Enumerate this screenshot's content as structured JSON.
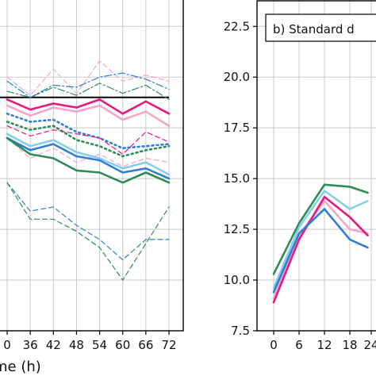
{
  "chart_data": [
    {
      "panel": "left",
      "type": "line",
      "xlabel_visible": "me (h)",
      "x_ticks_visible": [
        "0",
        "36",
        "42",
        "48",
        "54",
        "60",
        "66",
        "72"
      ],
      "x_range_visible": [
        30,
        72
      ],
      "ylim_visible": [
        7.5,
        23.8
      ],
      "grid": true,
      "reference_line": {
        "value": 19.0,
        "color": "#000000"
      },
      "series": [
        {
          "color": "#f6a5c8",
          "style": "dashed",
          "width": 1.2,
          "x": [
            30,
            36,
            42,
            48,
            54,
            60,
            66,
            72
          ],
          "y": [
            20.0,
            19.1,
            20.4,
            19.2,
            20.8,
            19.8,
            20.1,
            19.8
          ]
        },
        {
          "color": "#2f7fd2",
          "style": "dashdot",
          "width": 1.2,
          "x": [
            30,
            36,
            42,
            48,
            54,
            60,
            66,
            72
          ],
          "y": [
            19.8,
            19.0,
            19.6,
            19.5,
            20.0,
            20.2,
            19.9,
            19.4
          ]
        },
        {
          "color": "#2e8b57",
          "style": "dashdot",
          "width": 1.2,
          "x": [
            30,
            36,
            42,
            48,
            54,
            60,
            66,
            72
          ],
          "y": [
            19.3,
            19.0,
            19.5,
            19.1,
            19.7,
            19.2,
            19.6,
            18.9
          ]
        },
        {
          "color": "#e8197d",
          "style": "solid",
          "width": 2.6,
          "x": [
            30,
            36,
            42,
            48,
            54,
            60,
            66,
            72
          ],
          "y": [
            18.9,
            18.4,
            18.7,
            18.5,
            18.9,
            18.2,
            18.8,
            18.2
          ]
        },
        {
          "color": "#f6a5c8",
          "style": "solid",
          "width": 2.6,
          "x": [
            30,
            36,
            42,
            48,
            54,
            60,
            66,
            72
          ],
          "y": [
            18.6,
            18.1,
            18.5,
            18.3,
            18.6,
            17.9,
            18.3,
            17.6
          ]
        },
        {
          "color": "#2f7fd2",
          "style": "dotted",
          "width": 2.6,
          "x": [
            30,
            36,
            42,
            48,
            54,
            60,
            66,
            72
          ],
          "y": [
            18.2,
            17.8,
            17.9,
            17.3,
            17.0,
            16.5,
            16.6,
            16.7
          ]
        },
        {
          "color": "#2e8b57",
          "style": "dotted",
          "width": 2.6,
          "x": [
            30,
            36,
            42,
            48,
            54,
            60,
            66,
            72
          ],
          "y": [
            17.8,
            17.4,
            17.6,
            16.9,
            16.6,
            16.1,
            16.4,
            16.6
          ]
        },
        {
          "color": "#e8197d",
          "style": "dashed",
          "width": 1.2,
          "x": [
            30,
            36,
            42,
            48,
            54,
            60,
            66,
            72
          ],
          "y": [
            17.6,
            17.1,
            17.4,
            17.2,
            17.0,
            16.2,
            17.3,
            16.8
          ]
        },
        {
          "color": "#f6a5c8",
          "style": "dashed",
          "width": 1.2,
          "x": [
            30,
            36,
            42,
            48,
            54,
            60,
            66,
            72
          ],
          "y": [
            17.0,
            16.0,
            16.5,
            15.8,
            16.2,
            15.6,
            16.0,
            15.8
          ]
        },
        {
          "color": "#87ceeb",
          "style": "solid",
          "width": 2.6,
          "x": [
            30,
            36,
            42,
            48,
            54,
            60,
            66,
            72
          ],
          "y": [
            17.2,
            16.6,
            16.9,
            16.3,
            16.0,
            15.5,
            15.8,
            15.2
          ]
        },
        {
          "color": "#2f7fd2",
          "style": "solid",
          "width": 2.6,
          "x": [
            30,
            36,
            42,
            48,
            54,
            60,
            66,
            72
          ],
          "y": [
            17.0,
            16.4,
            16.7,
            16.1,
            15.9,
            15.3,
            15.5,
            15.0
          ]
        },
        {
          "color": "#2e8b57",
          "style": "solid",
          "width": 2.6,
          "x": [
            30,
            36,
            42,
            48,
            54,
            60,
            66,
            72
          ],
          "y": [
            17.0,
            16.2,
            16.0,
            15.4,
            15.3,
            14.8,
            15.3,
            14.8
          ]
        },
        {
          "color": "#2f7fd2",
          "style": "dashed",
          "width": 1.2,
          "x": [
            30,
            36,
            42,
            48,
            54,
            60,
            66,
            72
          ],
          "y": [
            14.8,
            13.4,
            13.6,
            12.7,
            12.0,
            11.0,
            12.0,
            12.0
          ]
        },
        {
          "color": "#2e8b57",
          "style": "dashed",
          "width": 1.2,
          "x": [
            30,
            36,
            42,
            48,
            54,
            60,
            66,
            72
          ],
          "y": [
            14.8,
            13.0,
            13.0,
            12.4,
            11.6,
            10.0,
            11.8,
            13.6
          ]
        }
      ]
    },
    {
      "panel": "right",
      "type": "line",
      "box_label": "b) Standard d",
      "x_ticks_visible": [
        "0",
        "6",
        "12",
        "18",
        "24"
      ],
      "y_ticks": [
        "7.5",
        "10.0",
        "12.5",
        "15.0",
        "17.5",
        "20.0",
        "22.5"
      ],
      "ylim": [
        7.5,
        23.8
      ],
      "x_range_visible": [
        -1,
        23
      ],
      "grid": true,
      "series": [
        {
          "color": "#2e8b57",
          "x": [
            0,
            6,
            12,
            18,
            23
          ],
          "y": [
            10.3,
            12.8,
            14.7,
            14.6,
            14.3
          ]
        },
        {
          "color": "#87ceeb",
          "x": [
            0,
            6,
            12,
            18,
            23
          ],
          "y": [
            9.6,
            12.6,
            14.4,
            13.5,
            13.9
          ]
        },
        {
          "color": "#f6a5c8",
          "x": [
            0,
            6,
            12,
            18,
            23
          ],
          "y": [
            9.1,
            12.2,
            13.9,
            12.5,
            12.3
          ]
        },
        {
          "color": "#e8197d",
          "x": [
            0,
            6,
            12,
            18,
            23
          ],
          "y": [
            8.9,
            12.0,
            14.1,
            13.1,
            12.2
          ]
        },
        {
          "color": "#2f7fd2",
          "x": [
            0,
            6,
            12,
            18,
            23
          ],
          "y": [
            9.4,
            12.3,
            13.5,
            12.0,
            11.6
          ]
        }
      ]
    }
  ]
}
